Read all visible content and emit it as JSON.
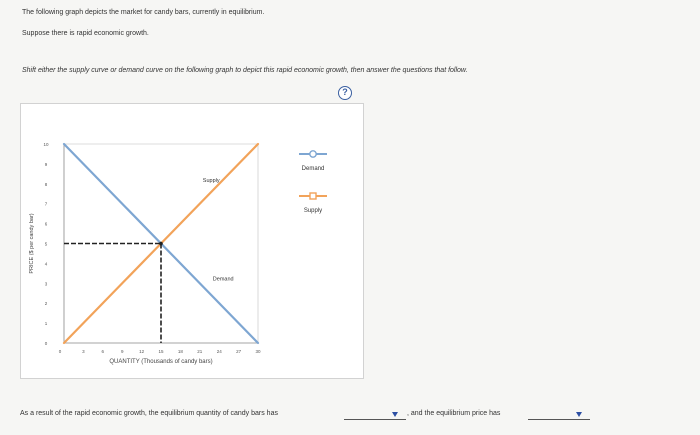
{
  "question": {
    "line1": "The following graph depicts the market for candy bars, currently in equilibrium.",
    "line2": "Suppose there is rapid economic growth.",
    "line3": "Shift either the supply curve or demand curve on the following graph to depict this rapid economic growth, then answer the questions that follow.",
    "help_label": "?"
  },
  "chart_data": {
    "type": "line",
    "xlabel": "QUANTITY (Thousands of candy bars)",
    "ylabel": "PRICE ($ per candy bar)",
    "xlim": [
      0,
      30
    ],
    "ylim": [
      0,
      10
    ],
    "x_ticks": [
      0,
      3,
      6,
      9,
      12,
      15,
      18,
      21,
      24,
      27,
      30
    ],
    "y_ticks": [
      0,
      1,
      2,
      3,
      4,
      5,
      6,
      7,
      8,
      9,
      10
    ],
    "series": [
      {
        "name": "Supply",
        "x": [
          0,
          30
        ],
        "y": [
          0,
          10
        ],
        "color": "#f2a35a"
      },
      {
        "name": "Demand",
        "x": [
          0,
          30
        ],
        "y": [
          10,
          0
        ],
        "color": "#7ea6d2"
      }
    ],
    "equilibrium": {
      "x": 15,
      "y": 5
    },
    "curve_labels": [
      "Supply",
      "Demand"
    ]
  },
  "legend": {
    "items": [
      {
        "label": "Demand",
        "color": "#7ea6d2",
        "marker": "circle"
      },
      {
        "label": "Supply",
        "color": "#f2a35a",
        "marker": "square"
      }
    ]
  },
  "answer": {
    "text_before": "As a result of the rapid economic growth, the equilibrium quantity of candy bars has",
    "text_middle": ", and the equilibrium price has",
    "dropdown_color": "#2c4fa3"
  }
}
